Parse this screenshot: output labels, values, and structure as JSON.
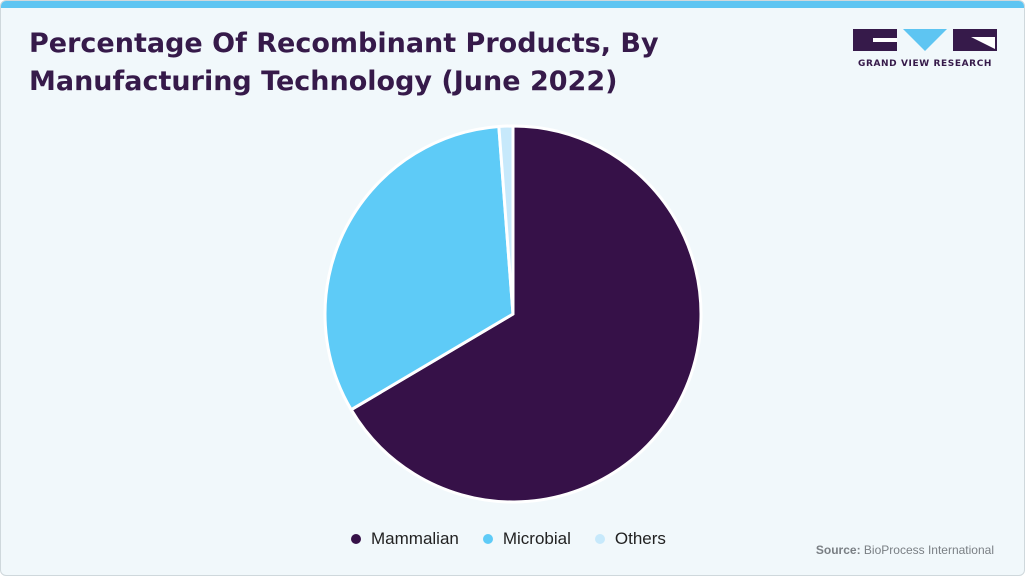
{
  "header": {
    "title_line1": "Percentage Of Recombinant Products, By",
    "title_line2": "Manufacturing Technology (June 2022)"
  },
  "logo": {
    "text": "GRAND VIEW RESEARCH",
    "icon": "gvr-logo-icon"
  },
  "colors": {
    "accent": "#5ec5f2",
    "brand": "#361a4a"
  },
  "chart_data": {
    "type": "pie",
    "title": "Percentage Of Recombinant Products, By Manufacturing Technology (June 2022)",
    "start_angle_deg": 0,
    "direction": "clockwise",
    "legend_position": "bottom-center",
    "slices": [
      {
        "label": "Mammalian",
        "value": 66.5,
        "color": "#361148"
      },
      {
        "label": "Microbial",
        "value": 32.3,
        "color": "#5ecbf7"
      },
      {
        "label": "Others",
        "value": 1.2,
        "color": "#c7e9fb"
      }
    ]
  },
  "source": {
    "label": "Source:",
    "text": "BioProcess International"
  }
}
